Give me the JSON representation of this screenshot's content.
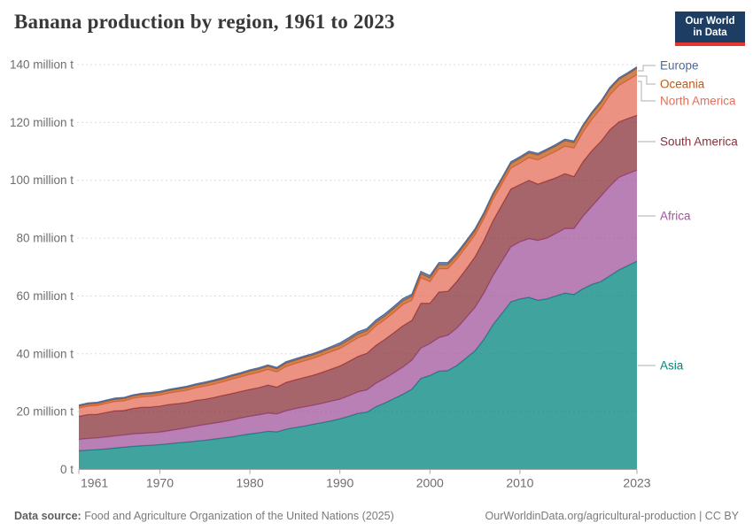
{
  "header": {
    "title": "Banana production by region, 1961 to 2023",
    "logo_line1": "Our World",
    "logo_line2": "in Data",
    "logo_bg": "#1d3d63",
    "logo_red": "#e5372f"
  },
  "chart_data": {
    "type": "area",
    "stacked": true,
    "title": "Banana production by region, 1961 to 2023",
    "unit": "million t",
    "x_start": 1961,
    "x_end": 2023,
    "x_ticks": [
      1961,
      1970,
      1980,
      1990,
      2000,
      2010,
      2023
    ],
    "y_ticks": [
      {
        "v": 0,
        "label": "0 t"
      },
      {
        "v": 20,
        "label": "20 million t"
      },
      {
        "v": 40,
        "label": "40 million t"
      },
      {
        "v": 60,
        "label": "60 million t"
      },
      {
        "v": 80,
        "label": "80 million t"
      },
      {
        "v": 100,
        "label": "100 million t"
      },
      {
        "v": 120,
        "label": "120 million t"
      },
      {
        "v": 140,
        "label": "140 million t"
      }
    ],
    "ylim": [
      0,
      140
    ],
    "grid": "dashed-horizontal",
    "legend_position": "right",
    "legend": [
      "Europe",
      "Oceania",
      "North America",
      "South America",
      "Africa",
      "Asia"
    ],
    "series": [
      {
        "name": "Asia",
        "color": "#00847E",
        "values": [
          6.5,
          6.7,
          6.9,
          7.1,
          7.4,
          7.7,
          8.0,
          8.2,
          8.4,
          8.6,
          8.9,
          9.2,
          9.5,
          9.8,
          10.1,
          10.5,
          10.9,
          11.3,
          11.8,
          12.3,
          12.7,
          13.2,
          13.0,
          13.9,
          14.5,
          15.0,
          15.6,
          16.2,
          16.8,
          17.5,
          18.4,
          19.4,
          19.8,
          21.7,
          23.0,
          24.5,
          26.0,
          27.8,
          31.5,
          32.5,
          34.0,
          34.2,
          36.0,
          38.5,
          41.0,
          45.0,
          50.0,
          54.0,
          58.0,
          59.0,
          59.5,
          58.5,
          59.0,
          60.0,
          61.0,
          60.5,
          62.5,
          64.0,
          65.0,
          67.0,
          69.0,
          70.5,
          72.0
        ]
      },
      {
        "name": "Africa",
        "color": "#A2559C",
        "values": [
          3.9,
          4.0,
          4.0,
          4.1,
          4.2,
          4.2,
          4.3,
          4.3,
          4.3,
          4.3,
          4.5,
          4.7,
          4.9,
          5.2,
          5.4,
          5.5,
          5.6,
          5.8,
          6.0,
          6.1,
          6.2,
          6.3,
          6.2,
          6.4,
          6.5,
          6.6,
          6.6,
          6.7,
          6.8,
          6.8,
          7.1,
          7.4,
          7.7,
          8.1,
          8.5,
          8.9,
          9.4,
          10.0,
          10.5,
          11.0,
          11.6,
          12.2,
          12.9,
          13.9,
          15.0,
          16.0,
          17.0,
          18.0,
          19.0,
          19.7,
          20.3,
          20.7,
          21.0,
          21.6,
          22.3,
          22.8,
          25.0,
          27.0,
          29.5,
          31.0,
          32.0,
          31.8,
          31.5
        ]
      },
      {
        "name": "South America",
        "color": "#883039",
        "values": [
          8.0,
          8.3,
          8.2,
          8.5,
          8.7,
          8.5,
          8.8,
          9.0,
          8.9,
          9.0,
          9.1,
          8.9,
          8.8,
          8.9,
          8.8,
          8.9,
          9.1,
          9.2,
          9.2,
          9.3,
          9.4,
          9.7,
          9.3,
          9.8,
          10.0,
          10.2,
          10.4,
          10.7,
          11.1,
          11.5,
          11.9,
          12.3,
          12.7,
          13.1,
          13.5,
          13.9,
          14.3,
          13.8,
          15.5,
          14.0,
          15.8,
          15.2,
          16.2,
          16.8,
          17.5,
          18.3,
          19.0,
          19.5,
          20.0,
          19.8,
          20.2,
          19.5,
          19.8,
          19.3,
          19.0,
          18.0,
          18.9,
          19.3,
          19.0,
          19.5,
          19.2,
          19.1,
          19.0
        ]
      },
      {
        "name": "North America",
        "color": "#E56E5A",
        "values": [
          2.8,
          2.9,
          3.0,
          3.1,
          3.2,
          3.3,
          3.5,
          3.6,
          3.7,
          3.8,
          3.9,
          4.1,
          4.2,
          4.3,
          4.5,
          4.6,
          4.7,
          4.9,
          5.0,
          5.2,
          5.3,
          5.4,
          5.2,
          5.5,
          5.6,
          5.7,
          5.8,
          5.9,
          6.0,
          6.0,
          6.2,
          6.4,
          6.5,
          6.7,
          6.8,
          7.0,
          7.3,
          6.9,
          8.8,
          7.4,
          8.0,
          7.8,
          7.7,
          7.6,
          7.5,
          7.4,
          7.3,
          7.2,
          7.2,
          7.4,
          7.8,
          8.3,
          8.7,
          9.1,
          9.5,
          9.8,
          10.2,
          10.8,
          11.3,
          12.0,
          12.6,
          13.2,
          14.0
        ]
      },
      {
        "name": "Oceania",
        "color": "#BE5915",
        "values": [
          0.7,
          0.72,
          0.74,
          0.76,
          0.78,
          0.8,
          0.82,
          0.84,
          0.86,
          0.88,
          0.9,
          0.92,
          0.94,
          0.96,
          0.98,
          1.0,
          1.0,
          1.05,
          1.05,
          1.1,
          1.1,
          1.1,
          1.1,
          1.15,
          1.15,
          1.2,
          1.2,
          1.2,
          1.25,
          1.25,
          1.25,
          1.3,
          1.3,
          1.3,
          1.3,
          1.35,
          1.35,
          1.35,
          1.4,
          1.4,
          1.4,
          1.45,
          1.45,
          1.5,
          1.5,
          1.5,
          1.55,
          1.6,
          1.6,
          1.65,
          1.7,
          1.75,
          1.8,
          1.85,
          1.9,
          1.95,
          2.0,
          2.0,
          2.05,
          2.1,
          2.1,
          2.15,
          2.2
        ]
      },
      {
        "name": "Europe",
        "color": "#4C6A9C",
        "values": [
          0.35,
          0.35,
          0.36,
          0.36,
          0.37,
          0.37,
          0.38,
          0.38,
          0.39,
          0.39,
          0.4,
          0.4,
          0.41,
          0.41,
          0.42,
          0.42,
          0.43,
          0.43,
          0.44,
          0.44,
          0.45,
          0.45,
          0.45,
          0.46,
          0.46,
          0.47,
          0.47,
          0.48,
          0.48,
          0.7,
          0.72,
          0.74,
          0.72,
          0.73,
          0.74,
          0.75,
          0.74,
          0.73,
          0.74,
          0.73,
          0.72,
          0.7,
          0.68,
          0.66,
          0.64,
          0.62,
          0.6,
          0.58,
          0.56,
          0.55,
          0.54,
          0.53,
          0.52,
          0.52,
          0.51,
          0.51,
          0.5,
          0.5,
          0.5,
          0.5,
          0.5,
          0.5,
          0.5
        ]
      }
    ]
  },
  "footer": {
    "datasource_label": "Data source:",
    "datasource_text": "Food and Agriculture Organization of the United Nations (2025)",
    "credit": "OurWorldinData.org/agricultural-production | CC BY"
  }
}
